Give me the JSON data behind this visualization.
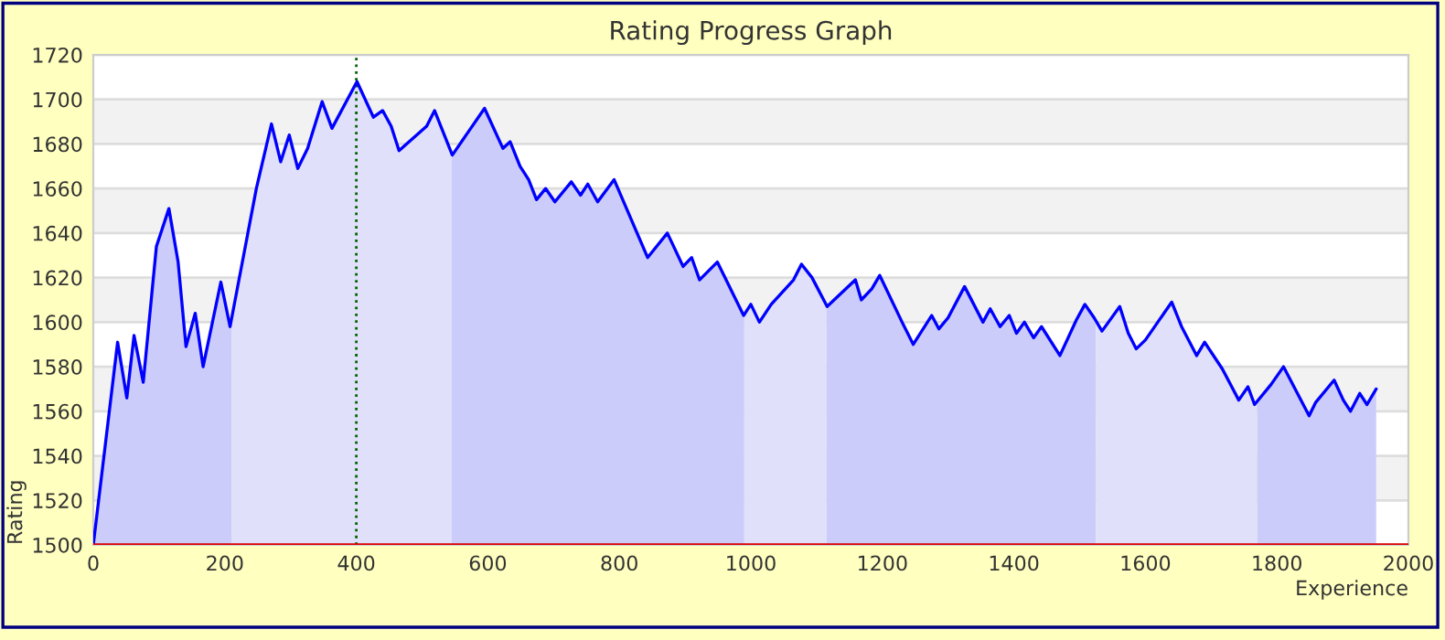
{
  "chart_data": {
    "type": "line",
    "title": "Rating Progress Graph",
    "xlabel": "Experience",
    "ylabel": "Rating",
    "xlim": [
      0,
      2000
    ],
    "ylim": [
      1500,
      1720
    ],
    "xticks": [
      0,
      200,
      400,
      600,
      800,
      1000,
      1200,
      1400,
      1600,
      1800,
      2000
    ],
    "yticks": [
      1500,
      1520,
      1540,
      1560,
      1580,
      1600,
      1620,
      1640,
      1660,
      1680,
      1700,
      1720
    ],
    "grid": "y",
    "series": [
      {
        "type": "area",
        "color": "#ccccfa",
        "x": [
          0,
          37,
          51,
          62,
          76,
          96,
          115,
          129,
          141,
          155,
          167,
          194,
          208,
          210
        ],
        "values": [
          1500,
          1591,
          1566,
          1594,
          1573,
          1634,
          1651,
          1627,
          1589,
          1604,
          1580,
          1618,
          1598,
          1601
        ]
      },
      {
        "type": "area",
        "color": "#e0e0fa",
        "x": [
          210,
          248,
          271,
          285,
          298,
          311,
          326,
          348,
          363,
          401,
          426,
          440,
          453,
          465,
          507,
          519,
          545
        ],
        "values": [
          1601,
          1660,
          1689,
          1672,
          1684,
          1669,
          1678,
          1699,
          1687,
          1708,
          1692,
          1695,
          1688,
          1677,
          1688,
          1695,
          1675
        ]
      },
      {
        "type": "area",
        "color": "#ccccfa",
        "x": [
          545,
          595,
          623,
          634,
          649,
          662,
          674,
          688,
          702,
          727,
          741,
          752,
          767,
          792,
          843,
          873,
          897,
          910,
          922,
          949,
          989,
          990
        ],
        "values": [
          1675,
          1696,
          1678,
          1681,
          1670,
          1664,
          1655,
          1660,
          1654,
          1663,
          1657,
          1662,
          1654,
          1664,
          1629,
          1640,
          1625,
          1629,
          1619,
          1627,
          1603,
          1603
        ]
      },
      {
        "type": "area",
        "color": "#e0e0fa",
        "x": [
          990,
          1000,
          1013,
          1031,
          1065,
          1077,
          1093,
          1115
        ],
        "values": [
          1603,
          1608,
          1600,
          1608,
          1619,
          1626,
          1620,
          1607
        ]
      },
      {
        "type": "area",
        "color": "#ccccfa",
        "x": [
          1115,
          1159,
          1168,
          1184,
          1196,
          1230,
          1247,
          1275,
          1286,
          1300,
          1325,
          1353,
          1364,
          1379,
          1393,
          1404,
          1416,
          1430,
          1442,
          1470,
          1495,
          1508,
          1525
        ],
        "values": [
          1607,
          1619,
          1610,
          1615,
          1621,
          1600,
          1590,
          1603,
          1597,
          1602,
          1616,
          1600,
          1606,
          1598,
          1603,
          1595,
          1600,
          1593,
          1598,
          1585,
          1601,
          1608,
          1600
        ]
      },
      {
        "type": "area",
        "color": "#e0e0fa",
        "x": [
          1525,
          1534,
          1561,
          1574,
          1586,
          1600,
          1640,
          1655,
          1678,
          1690,
          1717,
          1742,
          1756,
          1766,
          1770
        ],
        "values": [
          1600,
          1596,
          1607,
          1595,
          1588,
          1592,
          1609,
          1598,
          1585,
          1591,
          1579,
          1565,
          1571,
          1563,
          1564
        ]
      },
      {
        "type": "area",
        "color": "#ccccfa",
        "x": [
          1770,
          1791,
          1810,
          1849,
          1859,
          1887,
          1901,
          1912,
          1926,
          1937,
          1951
        ],
        "values": [
          1564,
          1572,
          1580,
          1558,
          1564,
          1574,
          1565,
          1560,
          1568,
          1563,
          1570
        ]
      },
      {
        "color": "#0000ff",
        "x": [
          0,
          37,
          51,
          62,
          76,
          96,
          115,
          129,
          141,
          155,
          167,
          194,
          208,
          248,
          271,
          285,
          298,
          311,
          326,
          348,
          363,
          401,
          426,
          440,
          453,
          465,
          507,
          519,
          546,
          595,
          623,
          634,
          649,
          662,
          674,
          688,
          702,
          727,
          741,
          752,
          767,
          792,
          843,
          873,
          897,
          910,
          922,
          949,
          989,
          1000,
          1013,
          1031,
          1065,
          1077,
          1093,
          1116,
          1159,
          1168,
          1184,
          1196,
          1230,
          1247,
          1275,
          1286,
          1300,
          1325,
          1353,
          1364,
          1379,
          1393,
          1404,
          1416,
          1430,
          1442,
          1470,
          1495,
          1508,
          1522,
          1534,
          1561,
          1574,
          1586,
          1600,
          1640,
          1655,
          1678,
          1690,
          1717,
          1742,
          1756,
          1766,
          1791,
          1810,
          1849,
          1859,
          1887,
          1901,
          1912,
          1926,
          1937,
          1951
        ],
        "values": [
          1500,
          1591,
          1566,
          1594,
          1573,
          1634,
          1651,
          1627,
          1589,
          1604,
          1580,
          1618,
          1598,
          1660,
          1689,
          1672,
          1684,
          1669,
          1678,
          1699,
          1687,
          1708,
          1692,
          1695,
          1688,
          1677,
          1688,
          1695,
          1675,
          1696,
          1678,
          1681,
          1670,
          1664,
          1655,
          1660,
          1654,
          1663,
          1657,
          1662,
          1654,
          1664,
          1629,
          1640,
          1625,
          1629,
          1619,
          1627,
          1603,
          1608,
          1600,
          1608,
          1619,
          1626,
          1620,
          1607,
          1619,
          1610,
          1615,
          1621,
          1600,
          1590,
          1603,
          1597,
          1602,
          1616,
          1600,
          1606,
          1598,
          1603,
          1595,
          1600,
          1593,
          1598,
          1585,
          1601,
          1608,
          1602,
          1596,
          1607,
          1595,
          1588,
          1592,
          1609,
          1598,
          1585,
          1591,
          1579,
          1565,
          1571,
          1563,
          1572,
          1580,
          1558,
          1564,
          1574,
          1565,
          1560,
          1568,
          1563,
          1570
        ]
      }
    ],
    "ref_lines": [
      {
        "axis": "x",
        "value": 400,
        "color": "#006400",
        "line_style": "dotted"
      }
    ]
  }
}
